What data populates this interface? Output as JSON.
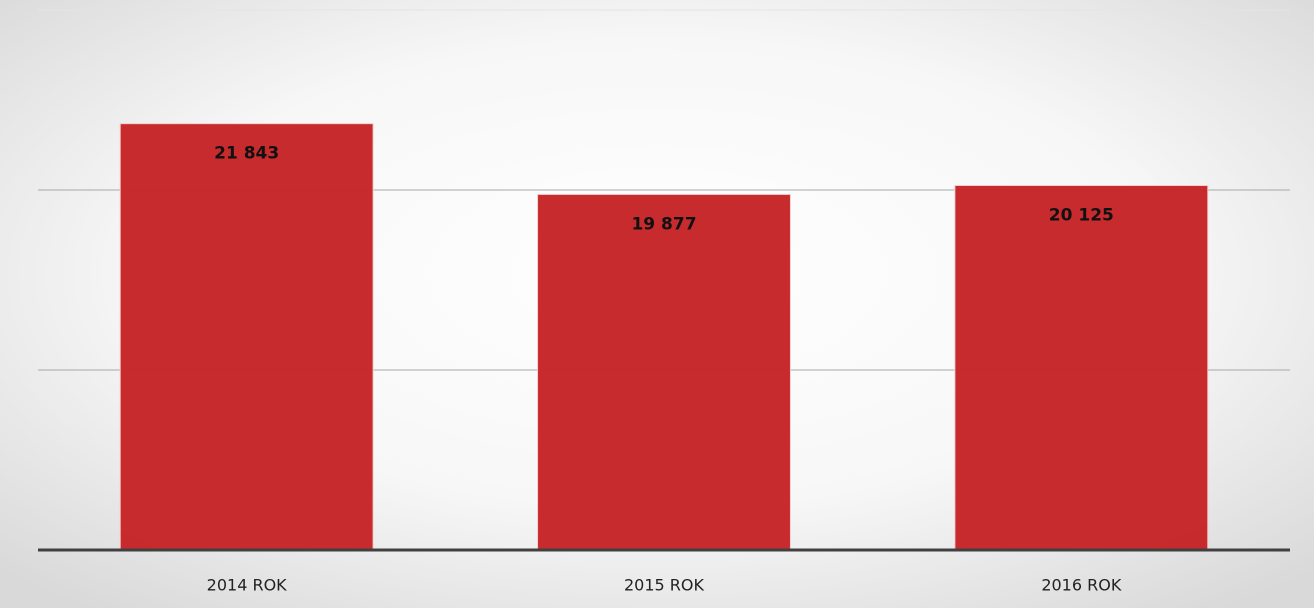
{
  "chart_data": {
    "type": "bar",
    "categories": [
      "2014 ROK",
      "2015 ROK",
      "2016 ROK"
    ],
    "values": [
      21843,
      19877,
      20125
    ],
    "value_labels": [
      "21 843",
      "19 877",
      "20 125"
    ],
    "color": "#c62426",
    "ylim": [
      10000,
      25000
    ],
    "yticks": [
      10000,
      15000,
      20000,
      25000
    ],
    "grid": true
  }
}
